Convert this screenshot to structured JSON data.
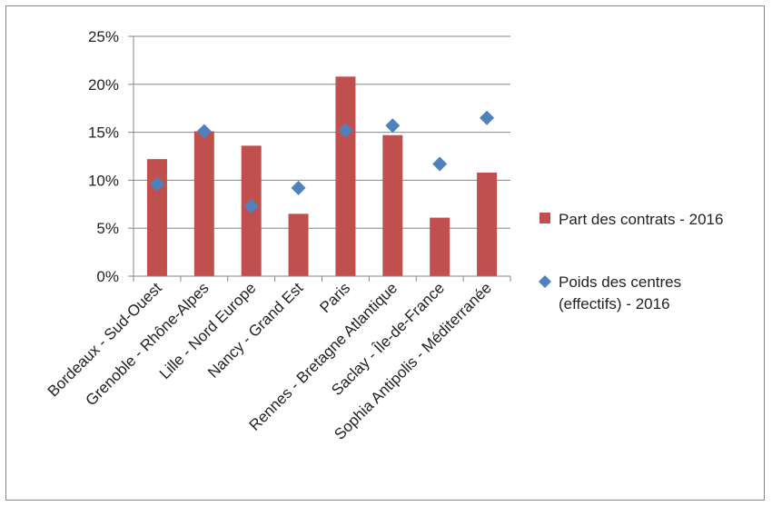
{
  "chart_data": {
    "type": "bar",
    "title": "",
    "xlabel": "",
    "ylabel": "",
    "ylim": [
      0,
      0.25
    ],
    "yticks": [
      "0%",
      "5%",
      "10%",
      "15%",
      "20%",
      "25%"
    ],
    "grid": "horizontal",
    "legend_position": "right",
    "categories": [
      "Bordeaux - Sud-Ouest",
      "Grenoble - Rhône-Alpes",
      "Lille - Nord Europe",
      "Nancy - Grand Est",
      "Paris",
      "Rennes - Bretagne Atlantique",
      "Saclay - Île-de-France",
      "Sophia Antipolis - Méditerranée"
    ],
    "series": [
      {
        "name": "Part des contrats - 2016",
        "kind": "bar",
        "color": "#c0504d",
        "values": [
          0.122,
          0.151,
          0.136,
          0.065,
          0.208,
          0.147,
          0.061,
          0.108
        ]
      },
      {
        "name": "Poids des centres (effectifs) - 2016",
        "name_lines": [
          "Poids des centres",
          "(effectifs) - 2016"
        ],
        "kind": "marker",
        "marker": "diamond",
        "color": "#4f81bd",
        "values": [
          0.096,
          0.151,
          0.073,
          0.092,
          0.152,
          0.157,
          0.117,
          0.165
        ]
      }
    ]
  }
}
